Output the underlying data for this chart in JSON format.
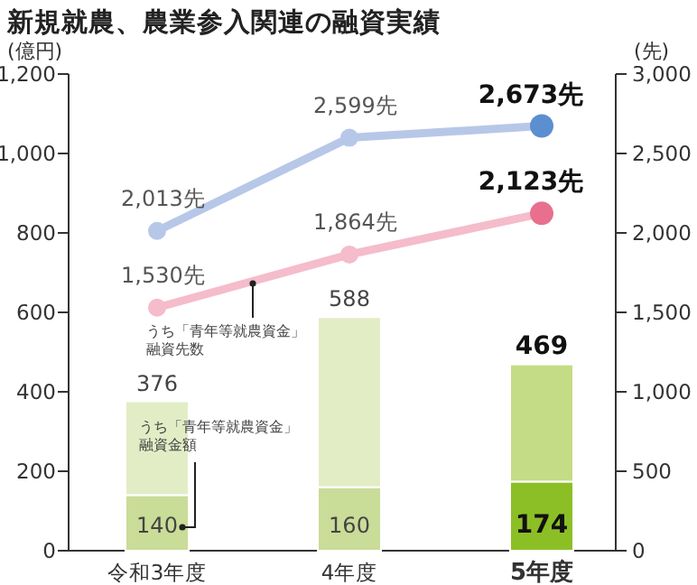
{
  "chart_data": {
    "type": "bar",
    "title": "新規就農、農業参入関連の融資実績",
    "ylabel": "(億円)",
    "y2label": "(先)",
    "categories": [
      "令和3年度",
      "4年度",
      "5年度"
    ],
    "stacked": true,
    "marker": "circle",
    "ylim": [
      0,
      1200
    ],
    "yticks": [
      0,
      200,
      400,
      600,
      800,
      {
        "value": 1000,
        "label": "1,000"
      },
      {
        "value": 1200,
        "label": "1,200"
      }
    ],
    "y2lim": [
      0,
      3000
    ],
    "y2ticks": [
      0,
      500,
      {
        "value": 1000,
        "label": "1,000"
      },
      {
        "value": 1500,
        "label": "1,500"
      },
      {
        "value": 2000,
        "label": "2,000"
      },
      {
        "value": 2500,
        "label": "2,500"
      },
      {
        "value": 3000,
        "label": "3,000"
      }
    ],
    "series": [
      {
        "colors": [
          "#c9dc98",
          "#c9dc98",
          "#8cbf26"
        ],
        "values": [
          140,
          160,
          174
        ],
        "value_labels": [
          "140",
          "160",
          "174"
        ]
      },
      {
        "colors": [
          "#e2edc6",
          "#e2edc6",
          "#c4dc86"
        ],
        "values": [
          236,
          428,
          295
        ]
      },
      {
        "type": "line",
        "axis": "y2",
        "color": "#b7c7e8",
        "colors": [
          "#b7c7e8",
          "#b7c7e8",
          "#5b8fd0"
        ],
        "values": [
          2013,
          2599,
          2673
        ],
        "value_labels": [
          "2,013先",
          "2,599先",
          "2,673先"
        ]
      },
      {
        "type": "line",
        "axis": "y2",
        "color": "#f5bccb",
        "colors": [
          "#f5bccb",
          "#f5bccb",
          "#e96f8f"
        ],
        "values": [
          1530,
          1864,
          2123
        ],
        "value_labels": [
          "1,530先",
          "1,864先",
          "2,123先"
        ]
      }
    ],
    "totals": [
      "376",
      "588",
      "469"
    ],
    "annotations": [
      "うち「青年等就農資金」融資先数",
      "うち「青年等就農資金」融資金額"
    ]
  }
}
